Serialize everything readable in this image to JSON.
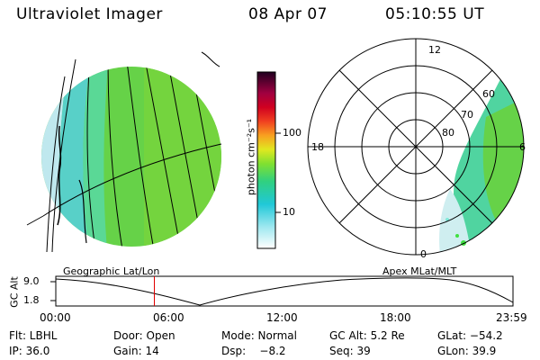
{
  "header": {
    "title": "Ultraviolet Imager",
    "date": "08 Apr 07",
    "time": "05:10:55 UT"
  },
  "colorbar": {
    "unit_label": "photon cm⁻²s⁻¹",
    "ticks": [
      "100",
      "10"
    ]
  },
  "polar": {
    "labels": {
      "top": "12",
      "left": "18",
      "right": "6",
      "bottom": "0",
      "ring60": "60",
      "ring70": "70",
      "ring80": "80"
    }
  },
  "panel_labels": {
    "left": "Geographic Lat/Lon",
    "right": "Apex MLat/MLT"
  },
  "altitude_plot": {
    "axis_label": "GC Alt",
    "y_ticks": [
      "9.0",
      "1.8"
    ],
    "x_ticks": [
      "00:00",
      "06:00",
      "12:00",
      "18:00",
      "23:59"
    ],
    "marker_time_hours": 5.18
  },
  "info": {
    "row1": {
      "filter": "Flt: LBHL",
      "door": "Door: Open",
      "mode": "Mode: Normal",
      "gc_alt": "GC Alt: 5.2 Re",
      "glat": "GLat: −54.2"
    },
    "row2": {
      "ip": "IP: 36.0",
      "gain": "Gain: 14",
      "dsp": "Dsp:    −8.2",
      "seq": "Seq: 39",
      "glon": "GLon: 39.9"
    }
  }
}
